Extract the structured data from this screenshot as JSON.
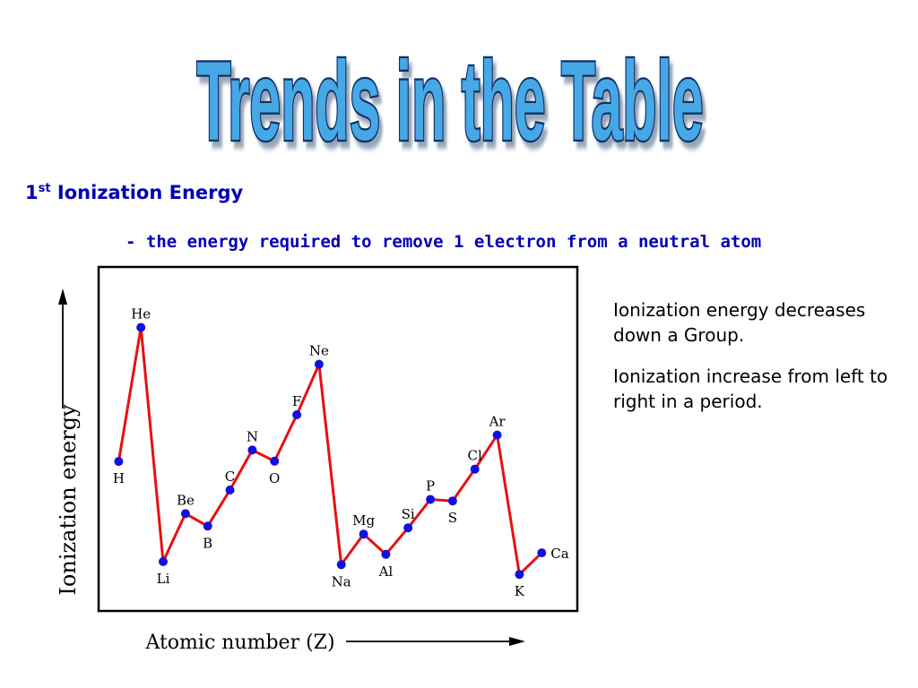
{
  "slide": {
    "title": "Trends in the Table",
    "heading_main": "1",
    "heading_sup": "st",
    "heading_rest": " Ionization Energy",
    "definition": "- the energy required to remove 1 electron from a neutral atom",
    "notes": [
      "Ionization energy decreases down a Group.",
      "Ionization increase from left to right in a period."
    ]
  },
  "colors": {
    "title_fill": "#47a8e6",
    "title_outline": "#10306a",
    "heading_text": "#0000b4",
    "line": "#e81010",
    "point": "#1010e0"
  },
  "chart_data": {
    "type": "line",
    "title": "",
    "xlabel": "Atomic number (Z)",
    "ylabel": "Ionization energy",
    "x": [
      1,
      2,
      3,
      4,
      5,
      6,
      7,
      8,
      9,
      10,
      11,
      12,
      13,
      14,
      15,
      16,
      17,
      18,
      19,
      20
    ],
    "categories": [
      "H",
      "He",
      "Li",
      "Be",
      "B",
      "C",
      "N",
      "O",
      "F",
      "Ne",
      "Na",
      "Mg",
      "Al",
      "Si",
      "P",
      "S",
      "Cl",
      "Ar",
      "K",
      "Ca"
    ],
    "series": [
      {
        "values": [
          1312,
          2372,
          520,
          899,
          801,
          1086,
          1402,
          1314,
          1681,
          2081,
          496,
          738,
          578,
          787,
          1012,
          1000,
          1251,
          1521,
          419,
          590
        ]
      }
    ],
    "xlim": [
      0.1,
      21.6
    ],
    "ylim": [
      130,
      2850
    ],
    "axis_ticks": false,
    "grid": false,
    "legend": "none"
  }
}
